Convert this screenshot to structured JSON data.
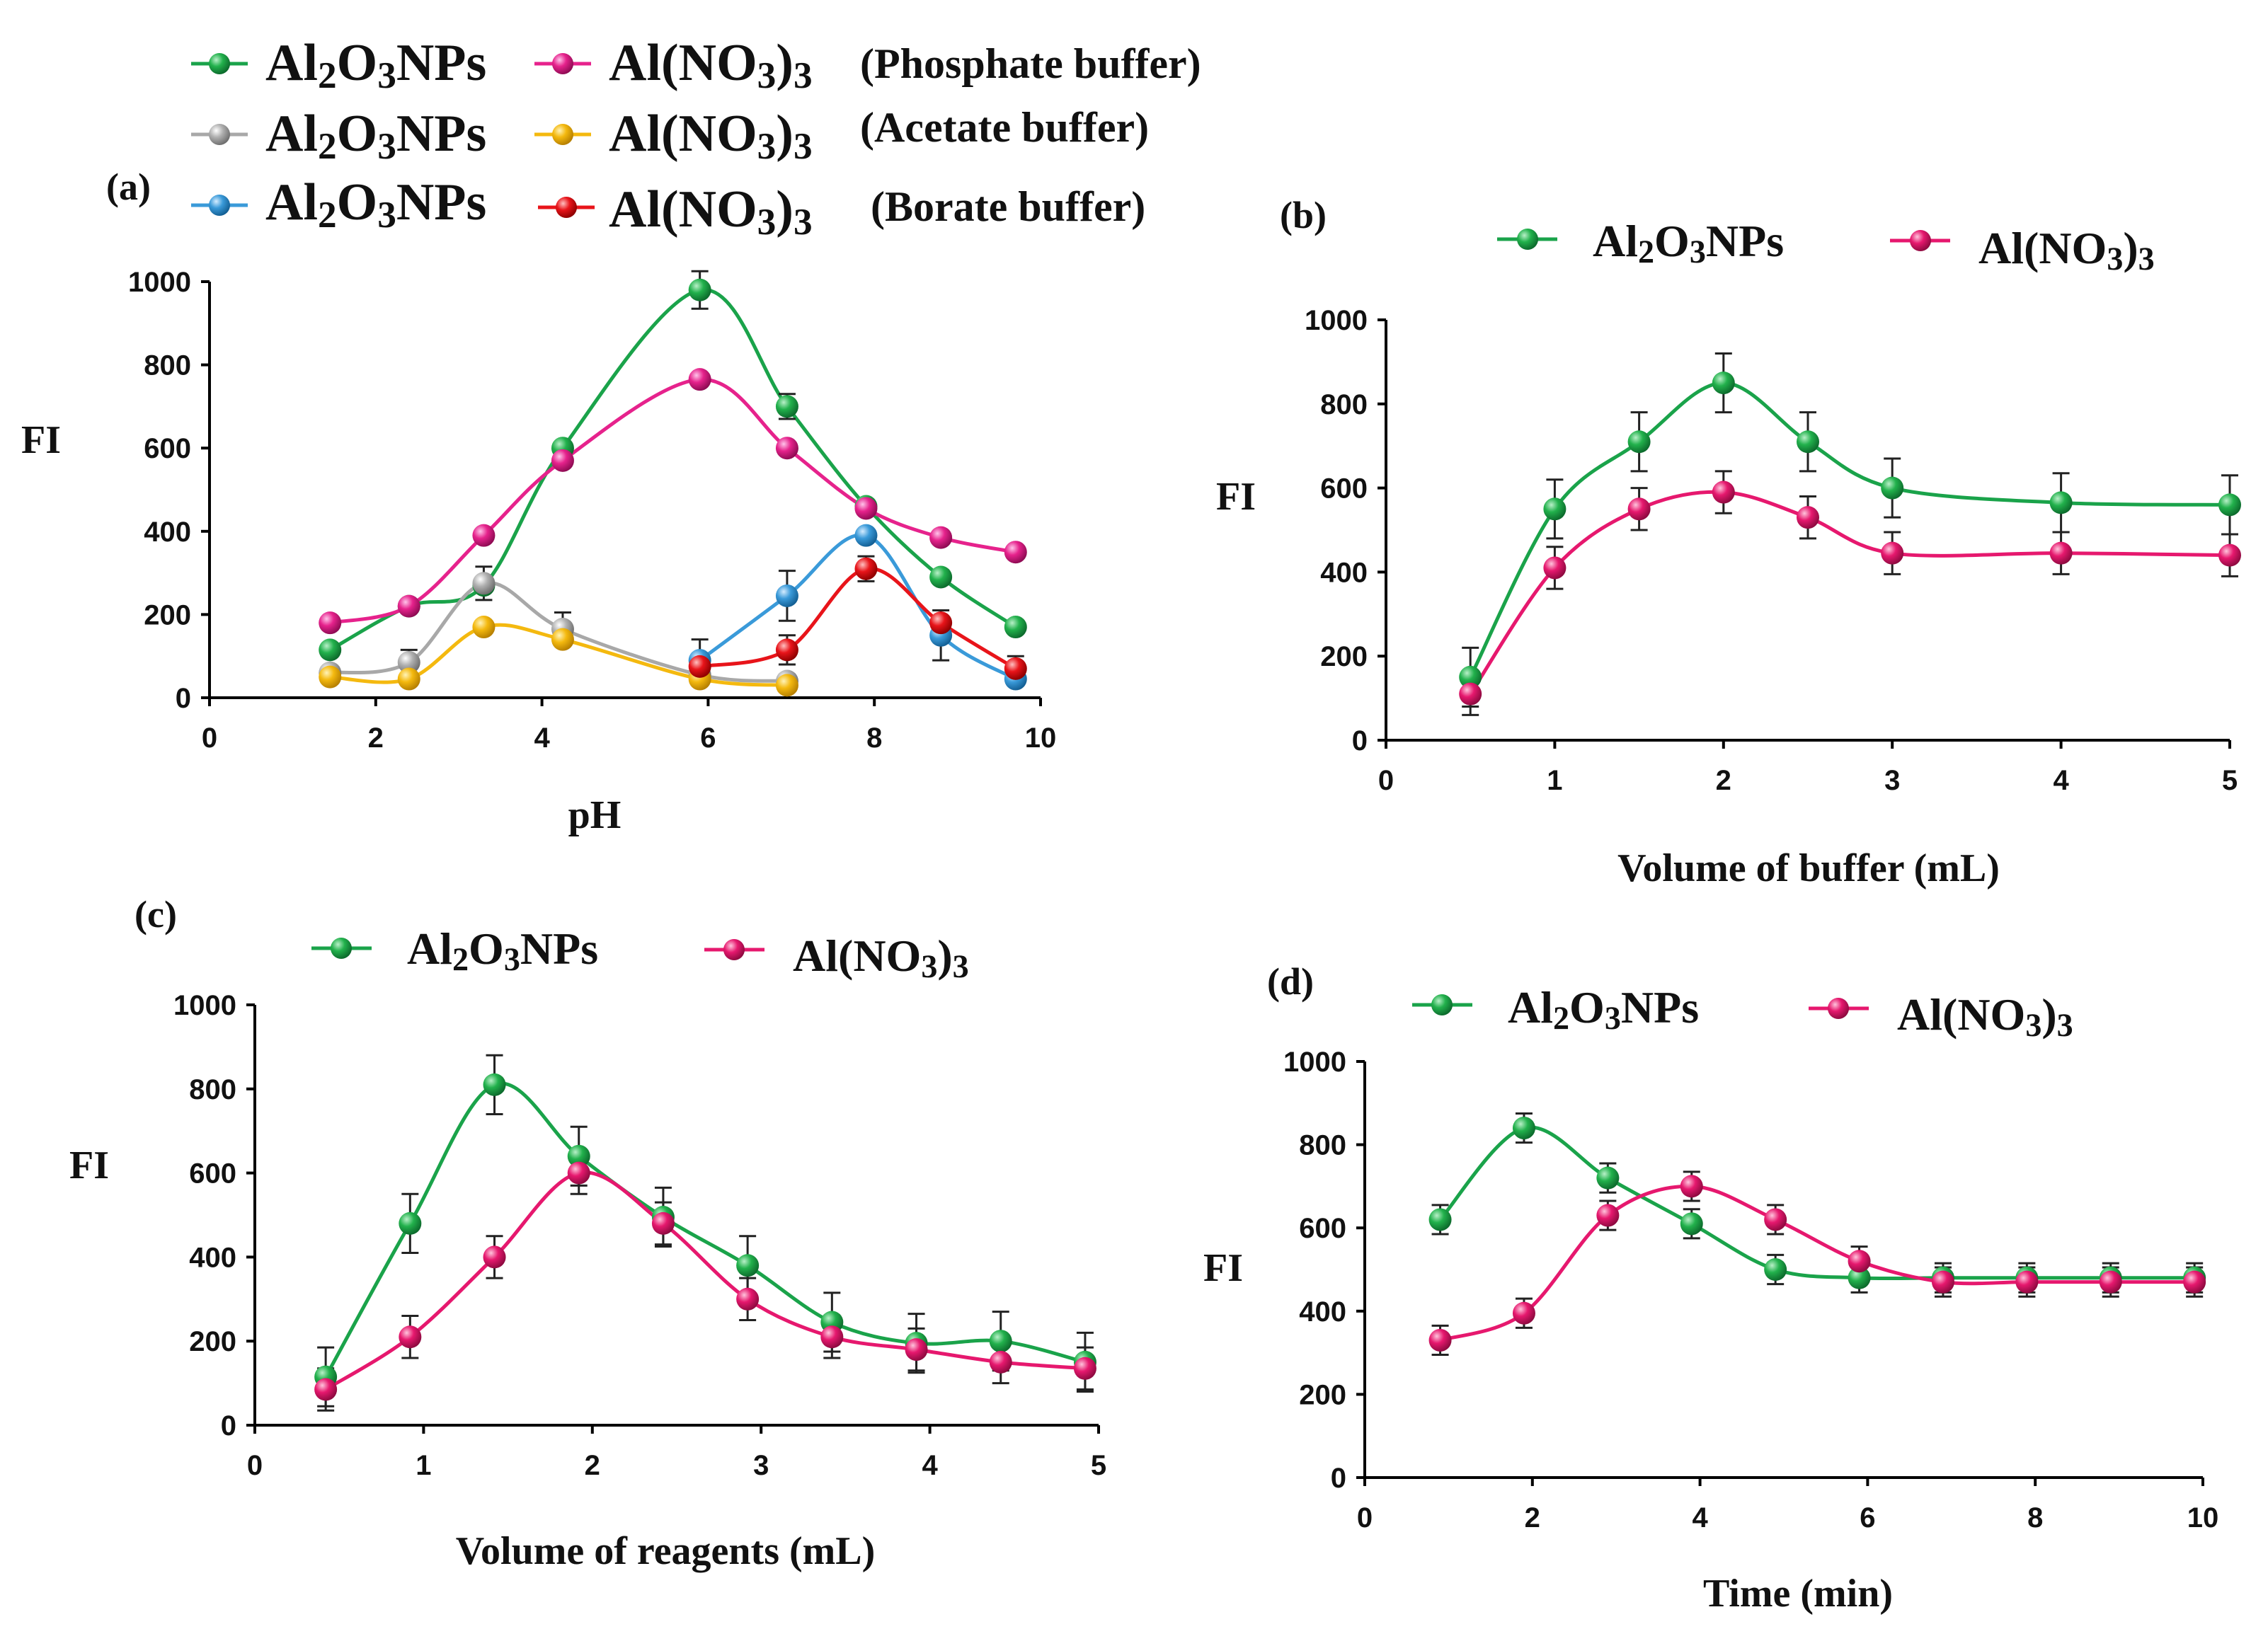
{
  "colors": {
    "green": "#1aa34a",
    "magenta": "#e6228c",
    "grey": "#a8a8a8",
    "yellow": "#f4b90f",
    "blue": "#3a9ad9",
    "red": "#e8141a",
    "pink": "#e6186e"
  },
  "chart_data": [
    {
      "panel": "(a)",
      "type": "line",
      "xlabel": "pH",
      "ylabel": "FI",
      "xlim": [
        0,
        10
      ],
      "ylim": [
        0,
        1000
      ],
      "xticks": [
        "0",
        "2",
        "4",
        "6",
        "8",
        "10"
      ],
      "yticks": [
        "0",
        "200",
        "400",
        "600",
        "800",
        "1000"
      ],
      "legend": {
        "rows": [
          {
            "nano": "Al2O3NPs",
            "salt": "Al(NO3)3",
            "buffer": "(Phosphate buffer)"
          },
          {
            "nano": "Al2O3NPs",
            "salt": "Al(NO3)3",
            "buffer": "(Acetate buffer)"
          },
          {
            "nano": "Al2O3NPs",
            "salt": "Al(NO3)3",
            "buffer": "(Borate buffer)"
          }
        ]
      },
      "series": [
        {
          "name": "Al2O3NPs (Phosphate buffer)",
          "color": "green",
          "x": [
            1.45,
            2.4,
            3.3,
            4.25,
            5.9,
            6.95,
            7.9,
            8.8,
            9.7
          ],
          "y": [
            115,
            220,
            270,
            600,
            980,
            700,
            460,
            290,
            170
          ],
          "err": [
            0,
            0,
            0,
            0,
            45,
            30,
            0,
            0,
            0
          ]
        },
        {
          "name": "Al(NO3)3 (Phosphate buffer)",
          "color": "magenta",
          "x": [
            1.45,
            2.4,
            3.3,
            4.25,
            5.9,
            6.95,
            7.9,
            8.8,
            9.7
          ],
          "y": [
            180,
            220,
            390,
            570,
            765,
            600,
            455,
            385,
            350
          ],
          "err": [
            0,
            0,
            0,
            0,
            0,
            0,
            0,
            0,
            0
          ]
        },
        {
          "name": "Al2O3NPs (Acetate buffer)",
          "color": "grey",
          "x": [
            1.45,
            2.4,
            3.3,
            4.25,
            5.9,
            6.95
          ],
          "y": [
            60,
            85,
            275,
            165,
            55,
            40
          ],
          "err": [
            0,
            30,
            40,
            40,
            0,
            0
          ]
        },
        {
          "name": "Al(NO3)3 (Acetate buffer)",
          "color": "yellow",
          "x": [
            1.45,
            2.4,
            3.3,
            4.25,
            5.9,
            6.95
          ],
          "y": [
            50,
            45,
            170,
            140,
            45,
            30
          ],
          "err": [
            0,
            0,
            0,
            0,
            0,
            0
          ]
        },
        {
          "name": "Al2O3NPs (Borate buffer)",
          "color": "blue",
          "x": [
            5.9,
            6.95,
            7.9,
            8.8,
            9.7
          ],
          "y": [
            90,
            245,
            390,
            150,
            45
          ],
          "err": [
            50,
            60,
            0,
            60,
            0
          ]
        },
        {
          "name": "Al(NO3)3 (Borate buffer)",
          "color": "red",
          "x": [
            5.9,
            6.95,
            7.9,
            8.8,
            9.7
          ],
          "y": [
            75,
            115,
            310,
            180,
            70
          ],
          "err": [
            0,
            35,
            30,
            0,
            30
          ]
        }
      ]
    },
    {
      "panel": "(b)",
      "type": "line",
      "xlabel": "Volume of buffer (mL)",
      "ylabel": "FI",
      "xlim": [
        0,
        5
      ],
      "ylim": [
        0,
        1000
      ],
      "xticks": [
        "0",
        "1",
        "2",
        "3",
        "4",
        "5"
      ],
      "yticks": [
        "0",
        "200",
        "400",
        "600",
        "800",
        "1000"
      ],
      "legend": {
        "nano": "Al2O3NPs",
        "salt": "Al(NO3)3"
      },
      "series": [
        {
          "name": "Al2O3NPs",
          "color": "green",
          "x": [
            0.5,
            1.0,
            1.5,
            2.0,
            2.5,
            3.0,
            4.0,
            5.0
          ],
          "y": [
            150,
            550,
            710,
            850,
            710,
            600,
            565,
            560
          ],
          "err": [
            70,
            70,
            70,
            70,
            70,
            70,
            70,
            70
          ]
        },
        {
          "name": "Al(NO3)3",
          "color": "pink",
          "x": [
            0.5,
            1.0,
            1.5,
            2.0,
            2.5,
            3.0,
            4.0,
            5.0
          ],
          "y": [
            110,
            410,
            550,
            590,
            530,
            445,
            445,
            440
          ],
          "err": [
            50,
            50,
            50,
            50,
            50,
            50,
            50,
            50
          ]
        }
      ]
    },
    {
      "panel": "(c)",
      "type": "line",
      "xlabel": "Volume of reagents (mL)",
      "ylabel": "FI",
      "xlim": [
        0,
        5
      ],
      "ylim": [
        0,
        1000
      ],
      "xticks": [
        "0",
        "1",
        "2",
        "3",
        "4",
        "5"
      ],
      "yticks": [
        "0",
        "200",
        "400",
        "600",
        "800",
        "1000"
      ],
      "legend": {
        "nano": "Al2O3NPs",
        "salt": "Al(NO3)3"
      },
      "series": [
        {
          "name": "Al2O3NPs",
          "color": "green",
          "x": [
            0.42,
            0.92,
            1.42,
            1.92,
            2.42,
            2.92,
            3.42,
            3.92,
            4.42,
            4.92
          ],
          "y": [
            115,
            480,
            810,
            640,
            495,
            380,
            245,
            195,
            200,
            150
          ],
          "err": [
            70,
            70,
            70,
            70,
            70,
            70,
            70,
            70,
            70,
            70
          ]
        },
        {
          "name": "Al(NO3)3",
          "color": "pink",
          "x": [
            0.42,
            0.92,
            1.42,
            1.92,
            2.42,
            2.92,
            3.42,
            3.92,
            4.42,
            4.92
          ],
          "y": [
            85,
            210,
            400,
            600,
            480,
            300,
            210,
            180,
            150,
            135
          ],
          "err": [
            50,
            50,
            50,
            50,
            50,
            50,
            50,
            50,
            50,
            50
          ]
        }
      ]
    },
    {
      "panel": "(d)",
      "type": "line",
      "xlabel": "Time (min)",
      "ylabel": "FI",
      "xlim": [
        0,
        10
      ],
      "ylim": [
        0,
        1000
      ],
      "xticks": [
        "0",
        "2",
        "4",
        "6",
        "8",
        "10"
      ],
      "yticks": [
        "0",
        "200",
        "400",
        "600",
        "800",
        "1000"
      ],
      "legend": {
        "nano": "Al2O3NPs",
        "salt": "Al(NO3)3"
      },
      "series": [
        {
          "name": "Al2O3NPs",
          "color": "green",
          "x": [
            0.9,
            1.9,
            2.9,
            3.9,
            4.9,
            5.9,
            6.9,
            7.9,
            8.9,
            9.9
          ],
          "y": [
            620,
            840,
            720,
            610,
            500,
            480,
            480,
            480,
            480,
            480
          ],
          "err": [
            35,
            35,
            35,
            35,
            35,
            35,
            35,
            35,
            35,
            35
          ]
        },
        {
          "name": "Al(NO3)3",
          "color": "pink",
          "x": [
            0.9,
            1.9,
            2.9,
            3.9,
            4.9,
            5.9,
            6.9,
            7.9,
            8.9,
            9.9
          ],
          "y": [
            330,
            395,
            630,
            700,
            620,
            520,
            470,
            470,
            470,
            470
          ],
          "err": [
            35,
            35,
            35,
            35,
            35,
            35,
            35,
            35,
            35,
            35
          ]
        }
      ]
    }
  ]
}
